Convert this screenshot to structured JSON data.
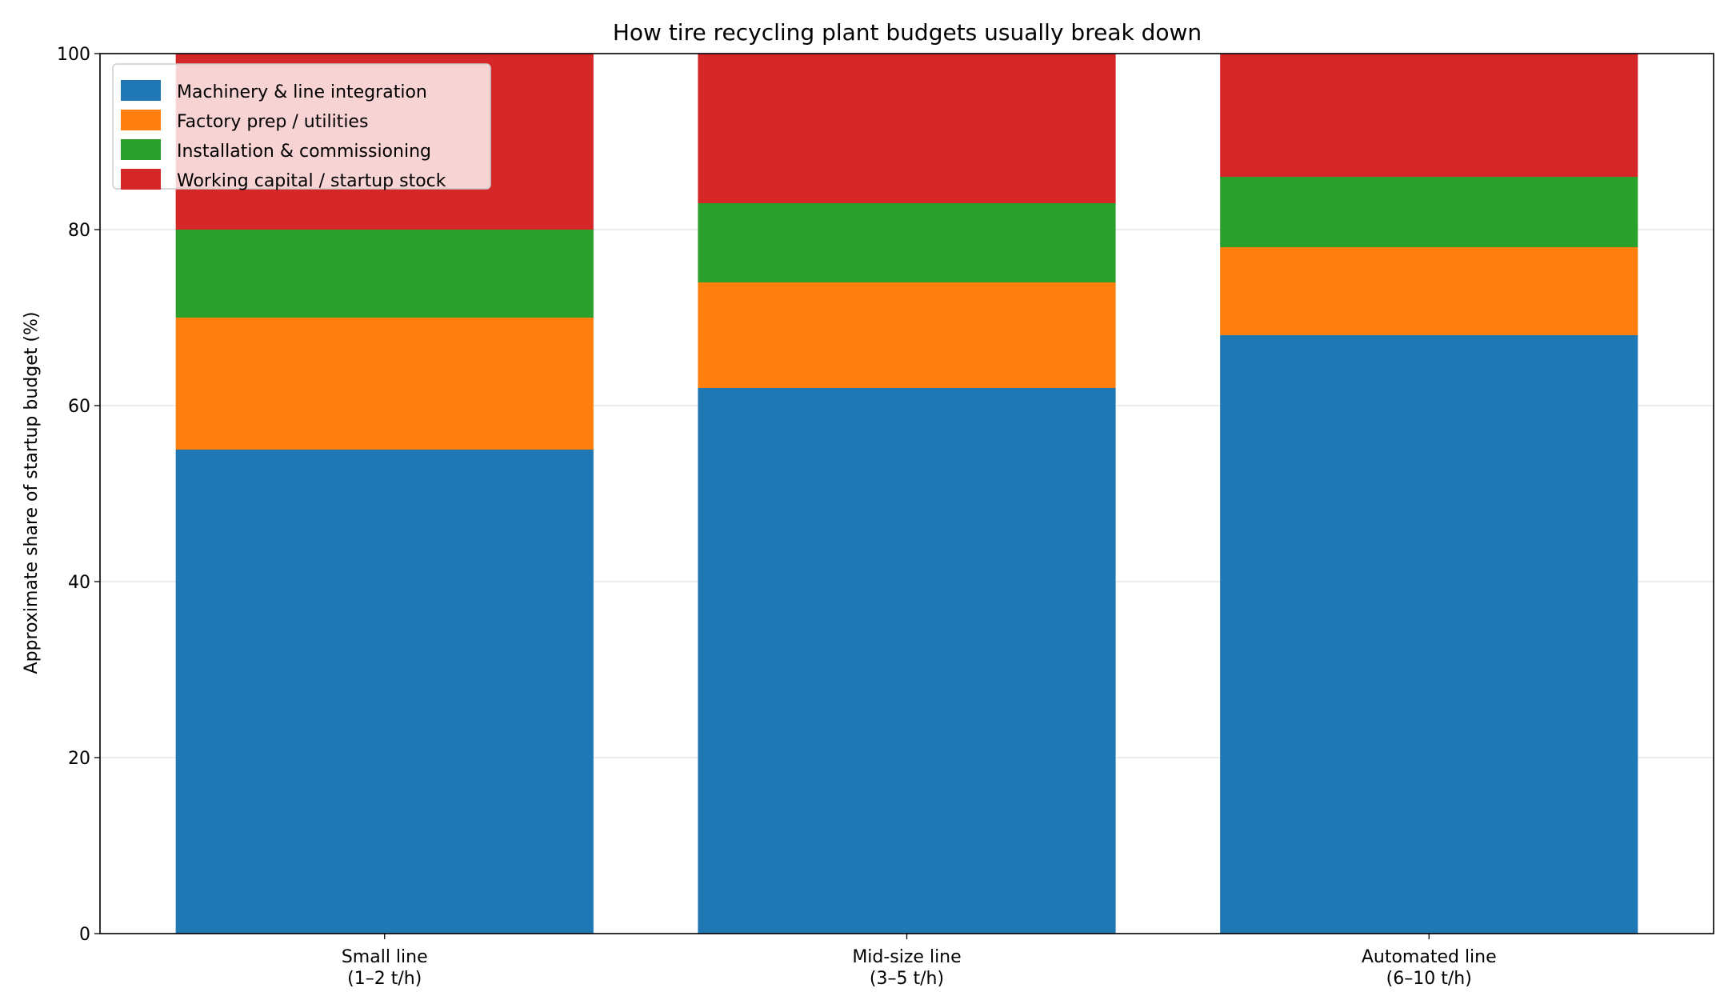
{
  "chart_data": {
    "type": "bar",
    "stacked": true,
    "title": "How tire recycling plant budgets usually break down",
    "xlabel": "",
    "ylabel": "Approximate share of startup budget (%)",
    "categories": [
      "Small line\n(1–2 t/h)",
      "Mid-size line\n(3–5 t/h)",
      "Automated line\n(6–10 t/h)"
    ],
    "series": [
      {
        "name": "Machinery & line integration",
        "color": "#1f77b4",
        "values": [
          55,
          62,
          68
        ]
      },
      {
        "name": "Factory prep / utilities",
        "color": "#ff7f0e",
        "values": [
          15,
          12,
          10
        ]
      },
      {
        "name": "Installation & commissioning",
        "color": "#2ca02c",
        "values": [
          10,
          9,
          8
        ]
      },
      {
        "name": "Working capital / startup stock",
        "color": "#d62728",
        "values": [
          20,
          17,
          14
        ]
      }
    ],
    "ylim": [
      0,
      100
    ],
    "yticks": [
      0,
      20,
      40,
      60,
      80,
      100
    ],
    "grid": "y",
    "legend": "top-left"
  }
}
